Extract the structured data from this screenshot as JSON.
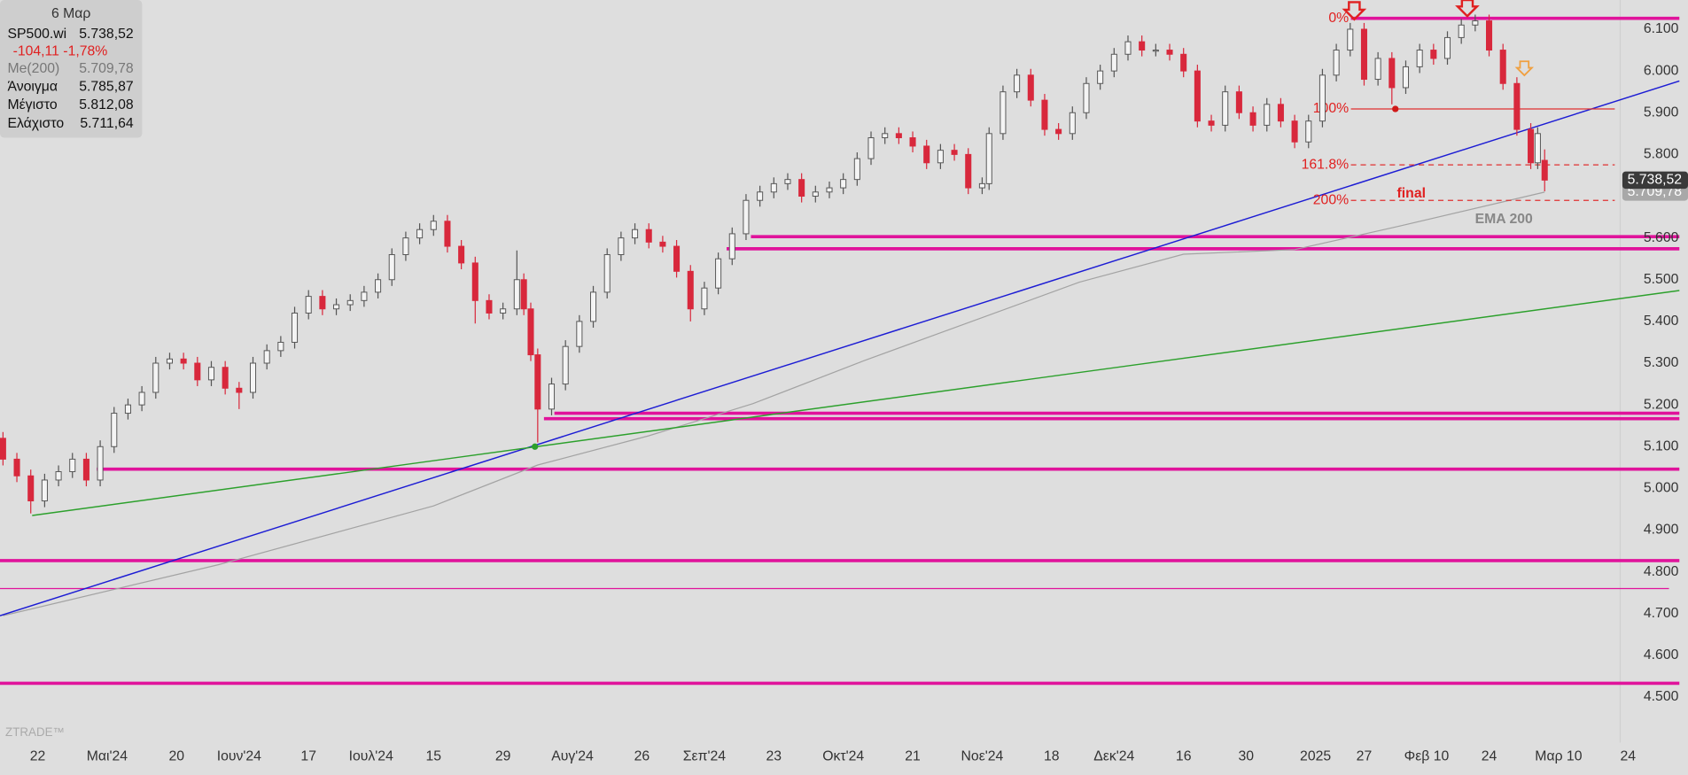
{
  "chart_data": {
    "type": "candlestick",
    "x": [
      -5,
      -3,
      -1,
      1,
      3,
      5,
      7,
      9,
      11,
      13,
      15,
      17,
      19,
      21,
      23,
      25,
      27,
      29,
      31,
      33,
      35,
      37,
      39,
      41,
      43,
      45,
      47,
      49,
      51,
      53,
      55,
      57,
      59,
      61,
      63,
      65,
      67,
      69,
      70,
      71,
      72,
      74,
      76,
      78,
      80,
      82,
      84,
      86,
      88,
      90,
      92,
      94,
      96,
      98,
      100,
      102,
      104,
      106,
      108,
      110,
      112,
      114,
      116,
      118,
      120,
      122,
      124,
      126,
      128,
      130,
      132,
      134,
      136,
      137,
      139,
      141,
      143,
      145,
      147,
      149,
      151,
      153,
      155,
      157,
      159,
      161,
      163,
      165,
      167,
      169,
      171,
      173,
      175,
      177,
      179,
      181,
      183,
      185,
      187,
      189,
      191,
      193,
      195,
      197,
      199,
      201,
      203,
      205,
      207,
      209,
      211,
      213,
      215,
      216,
      217
    ],
    "open": [
      5120,
      5070,
      5030,
      4970,
      5020,
      5040,
      5070,
      5020,
      5100,
      5180,
      5200,
      5230,
      5300,
      5310,
      5300,
      5260,
      5290,
      5240,
      5230,
      5300,
      5330,
      5350,
      5420,
      5460,
      5430,
      5440,
      5450,
      5470,
      5500,
      5560,
      5600,
      5620,
      5640,
      5580,
      5540,
      5450,
      5420,
      5430,
      5500,
      5430,
      5320,
      5190,
      5250,
      5340,
      5400,
      5470,
      5560,
      5600,
      5620,
      5590,
      5580,
      5520,
      5430,
      5480,
      5550,
      5610,
      5690,
      5710,
      5730,
      5740,
      5700,
      5710,
      5720,
      5740,
      5790,
      5840,
      5850,
      5840,
      5820,
      5780,
      5810,
      5800,
      5720,
      5730,
      5850,
      5950,
      5990,
      5930,
      5860,
      5850,
      5900,
      5970,
      6000,
      6040,
      6070,
      6050,
      6050,
      6040,
      6000,
      5880,
      5870,
      5950,
      5900,
      5870,
      5920,
      5880,
      5830,
      5880,
      5990,
      6050,
      6100,
      5980,
      6030,
      5960,
      6010,
      6050,
      6030,
      6080,
      6110,
      6120,
      6050,
      5970,
      5860,
      5780,
      5785.87
    ],
    "high": [
      5135,
      5085,
      5045,
      5035,
      5055,
      5085,
      5085,
      5115,
      5195,
      5215,
      5245,
      5315,
      5325,
      5325,
      5315,
      5305,
      5305,
      5255,
      5315,
      5345,
      5365,
      5435,
      5475,
      5475,
      5455,
      5465,
      5485,
      5515,
      5575,
      5615,
      5635,
      5655,
      5655,
      5595,
      5555,
      5465,
      5445,
      5570,
      5515,
      5445,
      5335,
      5265,
      5355,
      5415,
      5485,
      5575,
      5615,
      5635,
      5635,
      5605,
      5595,
      5535,
      5495,
      5565,
      5625,
      5705,
      5725,
      5745,
      5755,
      5755,
      5725,
      5735,
      5755,
      5805,
      5855,
      5865,
      5865,
      5855,
      5835,
      5825,
      5825,
      5815,
      5745,
      5865,
      5965,
      6005,
      6005,
      5945,
      5875,
      5915,
      5985,
      6015,
      6055,
      6085,
      6085,
      6065,
      6065,
      6055,
      6015,
      5895,
      5965,
      5965,
      5915,
      5935,
      5935,
      5895,
      5895,
      6005,
      6065,
      6115,
      6115,
      6045,
      6045,
      6025,
      6065,
      6065,
      6095,
      6125,
      6135,
      6135,
      6065,
      5985,
      5875,
      5865,
      5812.08
    ],
    "low": [
      5055,
      5015,
      4940,
      4955,
      5005,
      5025,
      5005,
      5005,
      5085,
      5165,
      5185,
      5215,
      5285,
      5285,
      5245,
      5245,
      5225,
      5190,
      5215,
      5285,
      5315,
      5335,
      5405,
      5415,
      5415,
      5425,
      5435,
      5455,
      5485,
      5545,
      5585,
      5605,
      5565,
      5525,
      5395,
      5405,
      5405,
      5415,
      5415,
      5305,
      5110,
      5175,
      5235,
      5325,
      5385,
      5455,
      5545,
      5585,
      5575,
      5565,
      5505,
      5400,
      5415,
      5465,
      5535,
      5595,
      5675,
      5695,
      5715,
      5685,
      5685,
      5695,
      5705,
      5725,
      5775,
      5825,
      5825,
      5805,
      5765,
      5765,
      5785,
      5705,
      5705,
      5715,
      5835,
      5935,
      5915,
      5845,
      5835,
      5835,
      5885,
      5955,
      5985,
      6025,
      6035,
      6035,
      6025,
      5985,
      5865,
      5855,
      5855,
      5885,
      5855,
      5855,
      5865,
      5815,
      5815,
      5865,
      5975,
      6035,
      5965,
      5965,
      5920,
      5945,
      5995,
      6015,
      6015,
      6065,
      6095,
      6035,
      5955,
      5845,
      5765,
      5765,
      5711.64
    ],
    "close": [
      5070,
      5030,
      4970,
      5020,
      5040,
      5070,
      5020,
      5100,
      5180,
      5200,
      5230,
      5300,
      5310,
      5300,
      5260,
      5290,
      5240,
      5230,
      5300,
      5330,
      5350,
      5420,
      5460,
      5430,
      5440,
      5450,
      5470,
      5500,
      5560,
      5600,
      5620,
      5640,
      5580,
      5540,
      5450,
      5420,
      5430,
      5500,
      5430,
      5320,
      5190,
      5250,
      5340,
      5400,
      5470,
      5560,
      5600,
      5620,
      5590,
      5580,
      5520,
      5430,
      5480,
      5550,
      5610,
      5690,
      5710,
      5730,
      5740,
      5700,
      5710,
      5720,
      5740,
      5790,
      5840,
      5850,
      5840,
      5820,
      5780,
      5810,
      5800,
      5720,
      5730,
      5850,
      5950,
      5990,
      5930,
      5860,
      5850,
      5900,
      5970,
      6000,
      6040,
      6070,
      6050,
      6050,
      6040,
      6000,
      5880,
      5870,
      5950,
      5900,
      5870,
      5920,
      5880,
      5830,
      5880,
      5990,
      6050,
      6100,
      5980,
      6030,
      5960,
      6010,
      6050,
      6030,
      6080,
      6110,
      6120,
      6050,
      5970,
      5860,
      5780,
      5850,
      5738.52
    ],
    "up_color": "#f4f4f4",
    "down_color": "#d8283c",
    "xlim": [
      -5.43,
      227.1
    ],
    "xticks": [
      {
        "value": 0,
        "label": "22"
      },
      {
        "value": 10,
        "label": "Μαι'24"
      },
      {
        "value": 20,
        "label": "20"
      },
      {
        "value": 29,
        "label": "Ιουν'24"
      },
      {
        "value": 39,
        "label": "17"
      },
      {
        "value": 48,
        "label": "Ιουλ'24"
      },
      {
        "value": 57,
        "label": "15"
      },
      {
        "value": 67,
        "label": "29"
      },
      {
        "value": 77,
        "label": "Αυγ'24"
      },
      {
        "value": 87,
        "label": "26"
      },
      {
        "value": 96,
        "label": "Σεπ'24"
      },
      {
        "value": 106,
        "label": "23"
      },
      {
        "value": 116,
        "label": "Οκτ'24"
      },
      {
        "value": 126,
        "label": "21"
      },
      {
        "value": 136,
        "label": "Νοε'24"
      },
      {
        "value": 146,
        "label": "18"
      },
      {
        "value": 155,
        "label": "Δεκ'24"
      },
      {
        "value": 165,
        "label": "16"
      },
      {
        "value": 174,
        "label": "30"
      },
      {
        "value": 184,
        "label": "2025"
      },
      {
        "value": 191,
        "label": "27"
      },
      {
        "value": 200,
        "label": "Φεβ 10"
      },
      {
        "value": 209,
        "label": "24"
      },
      {
        "value": 219,
        "label": "Μαρ 10"
      },
      {
        "value": 229,
        "label": "24"
      }
    ],
    "ylim": [
      4391,
      6170
    ],
    "yticks": [
      {
        "value": 4500,
        "label": "4.500"
      },
      {
        "value": 4600,
        "label": "4.600"
      },
      {
        "value": 4700,
        "label": "4.700"
      },
      {
        "value": 4800,
        "label": "4.800"
      },
      {
        "value": 4900,
        "label": "4.900"
      },
      {
        "value": 5000,
        "label": "5.000"
      },
      {
        "value": 5100,
        "label": "5.100"
      },
      {
        "value": 5200,
        "label": "5.200"
      },
      {
        "value": 5300,
        "label": "5.300"
      },
      {
        "value": 5400,
        "label": "5.400"
      },
      {
        "value": 5500,
        "label": "5.500"
      },
      {
        "value": 5600,
        "label": "5.600"
      },
      {
        "value": 5800,
        "label": "5.800"
      },
      {
        "value": 5900,
        "label": "5.900"
      },
      {
        "value": 6000,
        "label": "6.000"
      },
      {
        "value": 6100,
        "label": "6.100"
      }
    ],
    "ema": {
      "name": "EMA 200",
      "color": "#a3a3a3",
      "x": [
        -5,
        26,
        57,
        72,
        88,
        103,
        119,
        134,
        150,
        165,
        181,
        196,
        217
      ],
      "values": [
        4695,
        4817,
        4958,
        5056,
        5126,
        5203,
        5306,
        5397,
        5494,
        5561,
        5572,
        5628,
        5709.78
      ]
    },
    "hlines": [
      {
        "value": 5603,
        "x": [
          102.7,
          236.4
        ],
        "color": "#e0139b"
      },
      {
        "value": 5574,
        "x": [
          99.2,
          236.4
        ],
        "color": "#e0139b"
      },
      {
        "value": 5180,
        "x": [
          74.4,
          236.4
        ],
        "color": "#e0139b"
      },
      {
        "value": 5167,
        "x": [
          72.9,
          236.4
        ],
        "color": "#e0139b"
      },
      {
        "value": 5046,
        "x": [
          8.5,
          236.4
        ],
        "color": "#e0139b"
      },
      {
        "value": 4827,
        "x": [
          -5.43,
          236.4
        ],
        "color": "#e0139b"
      },
      {
        "value": 4760,
        "x": [
          -5.43,
          234.9
        ],
        "color": "#e0139b",
        "thin": true
      },
      {
        "value": 4533,
        "x": [
          -5.43,
          236.4
        ],
        "color": "#e0139b"
      }
    ],
    "trendlines": [
      {
        "x": [
          -5.43,
          236.4
        ],
        "y": [
          4695,
          5976
        ],
        "color": "#1c1cd4"
      },
      {
        "x": [
          -0.8,
          236.4
        ],
        "y": [
          4935,
          5474
        ],
        "color": "#2ca02c"
      }
    ],
    "points": [
      {
        "x": 71.6,
        "y": 5100,
        "color": "#2ca02c"
      },
      {
        "x": 195.5,
        "y": 5909,
        "color": "#d01818"
      }
    ],
    "fib": [
      {
        "label": "0%",
        "value": 6126,
        "x": [
          189.1,
          236.4
        ],
        "color": "#e0139b",
        "style": "thick"
      },
      {
        "label": "100%",
        "value": 5909,
        "x": [
          189.1,
          227.1
        ],
        "color": "#e03030",
        "style": "solid"
      },
      {
        "label": "161.8%",
        "value": 5775,
        "x": [
          189.1,
          227.1
        ],
        "color": "#e03030",
        "style": "dashed"
      },
      {
        "label": "200%",
        "value": 5690,
        "x": [
          189.1,
          227.1
        ],
        "color": "#e03030",
        "style": "dashed"
      }
    ],
    "annotation": "final",
    "price_tags": [
      {
        "value": 5738.52,
        "label": "5.738,52",
        "color": "#3a3a3a"
      },
      {
        "value": 5709.78,
        "label": "5.709,78",
        "color": "#a8a8a8"
      }
    ],
    "info": {
      "date": "6 Μαρ",
      "symbol": "SP500.wi",
      "last": "5.738,52",
      "change": "-104,11 -1,78%",
      "ma_label": "Me(200)",
      "ma": "5.709,78",
      "rows": [
        [
          "Άνοιγμα",
          "5.785,87"
        ],
        [
          "Μέγιστο",
          "5.812,08"
        ],
        [
          "Ελάχιστο",
          "5.711,64"
        ]
      ]
    },
    "watermark": "ZTRADE™"
  }
}
